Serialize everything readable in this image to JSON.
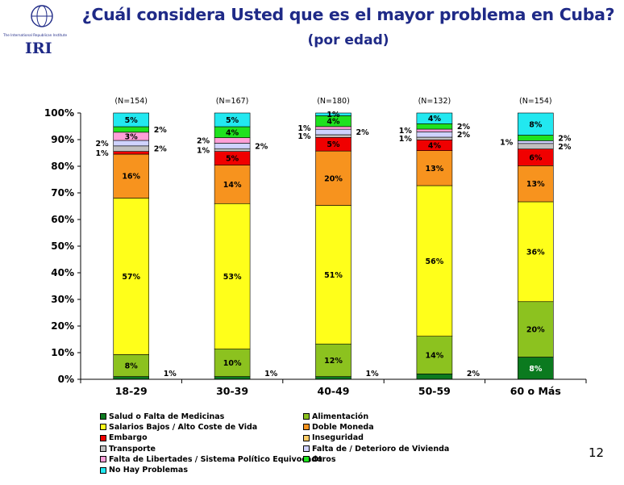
{
  "header": {
    "title": "¿Cuál considera Usted que es el mayor problema en Cuba?",
    "subtitle": "(por edad)",
    "logo_text": "IRI",
    "logo_small_text": "The International Republican Institute"
  },
  "colors": {
    "title": "#1f2a87",
    "logo": "#1f2a87"
  },
  "page_number": "12",
  "chart_data": {
    "type": "bar",
    "stacked": true,
    "title": "¿Cuál considera Usted que es el mayor problema en Cuba?",
    "subtitle": "(por edad)",
    "categories": [
      "18-29",
      "30-39",
      "40-49",
      "50-59",
      "60 o Más"
    ],
    "n_labels": [
      "(N=154)",
      "(N=167)",
      "(N=180)",
      "(N=132)",
      "(N=154)"
    ],
    "ylim": [
      0,
      100
    ],
    "y_ticks": [
      "0%",
      "10%",
      "20%",
      "30%",
      "40%",
      "50%",
      "60%",
      "70%",
      "80%",
      "90%",
      "100%"
    ],
    "grid": false,
    "legend_position": "bottom",
    "series": [
      {
        "name": "Salud o Falta de Medicinas",
        "color": "#0b7a1f",
        "values": [
          1,
          1,
          1,
          2,
          8
        ]
      },
      {
        "name": "Alimentación",
        "color": "#8cc21f",
        "values": [
          8,
          10,
          12,
          14,
          20
        ]
      },
      {
        "name": "Salarios Bajos / Alto Coste de Vida",
        "color": "#ffff1a",
        "values": [
          57,
          53,
          51,
          56,
          36
        ]
      },
      {
        "name": "Doble Moneda",
        "color": "#f7931e",
        "values": [
          16,
          14,
          20,
          13,
          13
        ]
      },
      {
        "name": "Embargo",
        "color": "#f00000",
        "values": [
          1,
          5,
          5,
          4,
          6
        ]
      },
      {
        "name": "Inseguridad",
        "color": "#ffcc66",
        "values": [
          0,
          0,
          0,
          0,
          0
        ]
      },
      {
        "name": "Transporte",
        "color": "#c0bfbf",
        "values": [
          2,
          1,
          1,
          1,
          2
        ]
      },
      {
        "name": "Falta de / Deterioro de Vivienda",
        "color": "#cfd2ff",
        "values": [
          2,
          2,
          2,
          2,
          1
        ]
      },
      {
        "name": "Falta de Libertades / Sistema Político Equivocado",
        "color": "#ff9fd8",
        "values": [
          3,
          2,
          1,
          1,
          0
        ]
      },
      {
        "name": "Otros",
        "color": "#1fe21f",
        "values": [
          2,
          4,
          4,
          2,
          2
        ]
      },
      {
        "name": "No Hay Problemas",
        "color": "#22e8f0",
        "values": [
          5,
          5,
          1,
          4,
          8
        ]
      }
    ],
    "data_labels": [
      [
        "1%",
        "8%",
        "57%",
        "16%",
        "1%",
        "",
        "2%",
        "2%",
        "3%",
        "2%",
        "5%"
      ],
      [
        "1%",
        "10%",
        "53%",
        "14%",
        "5%",
        "",
        "1%",
        "2%",
        "2%",
        "4%",
        "5%"
      ],
      [
        "1%",
        "12%",
        "51%",
        "20%",
        "5%",
        "",
        "1%",
        "2%",
        "1%",
        "4%",
        "1%"
      ],
      [
        "2%",
        "14%",
        "56%",
        "13%",
        "4%",
        "",
        "1%",
        "2%",
        "1%",
        "2%",
        "4%"
      ],
      [
        "8%",
        "20%",
        "36%",
        "13%",
        "6%",
        "",
        "2%",
        "1%",
        "",
        "2%",
        "8%"
      ]
    ]
  }
}
